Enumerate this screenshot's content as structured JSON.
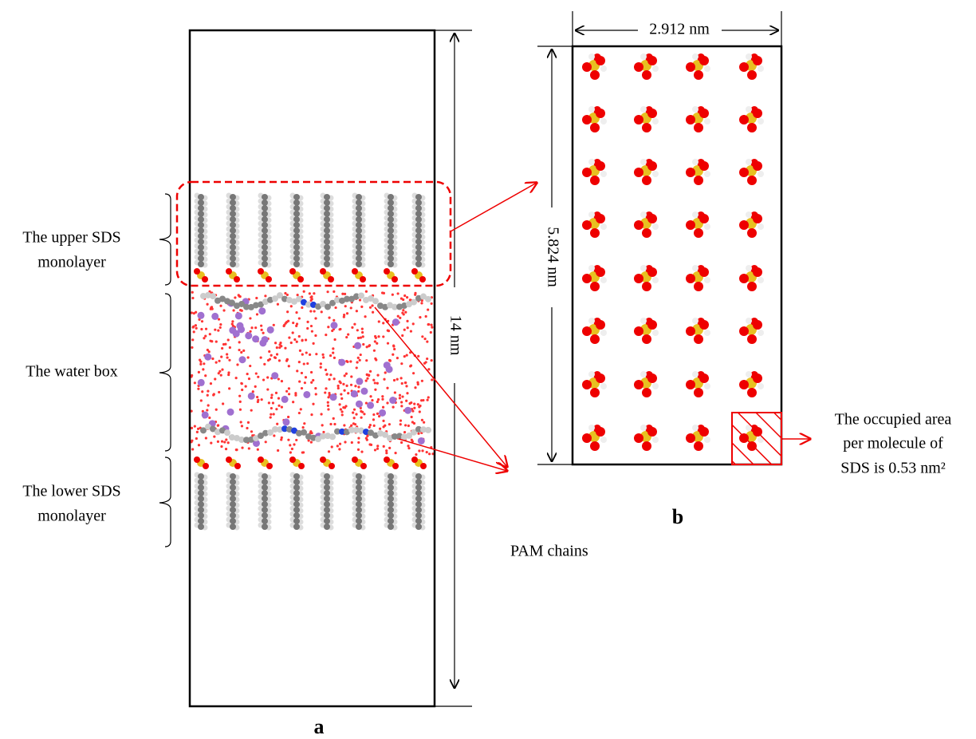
{
  "panel_a": {
    "label": "a",
    "upper_monolayer": [
      "The upper SDS",
      "monolayer"
    ],
    "water_box": "The water box",
    "lower_monolayer": [
      "The lower SDS",
      "monolayer"
    ],
    "height": "14 nm",
    "annotation": "PAM chains"
  },
  "panel_b": {
    "label": "b",
    "width": "2.912 nm",
    "height": "5.824 nm",
    "annotation": [
      "The occupied area",
      "per molecule of",
      "SDS  is 0.53 nm²"
    ]
  }
}
